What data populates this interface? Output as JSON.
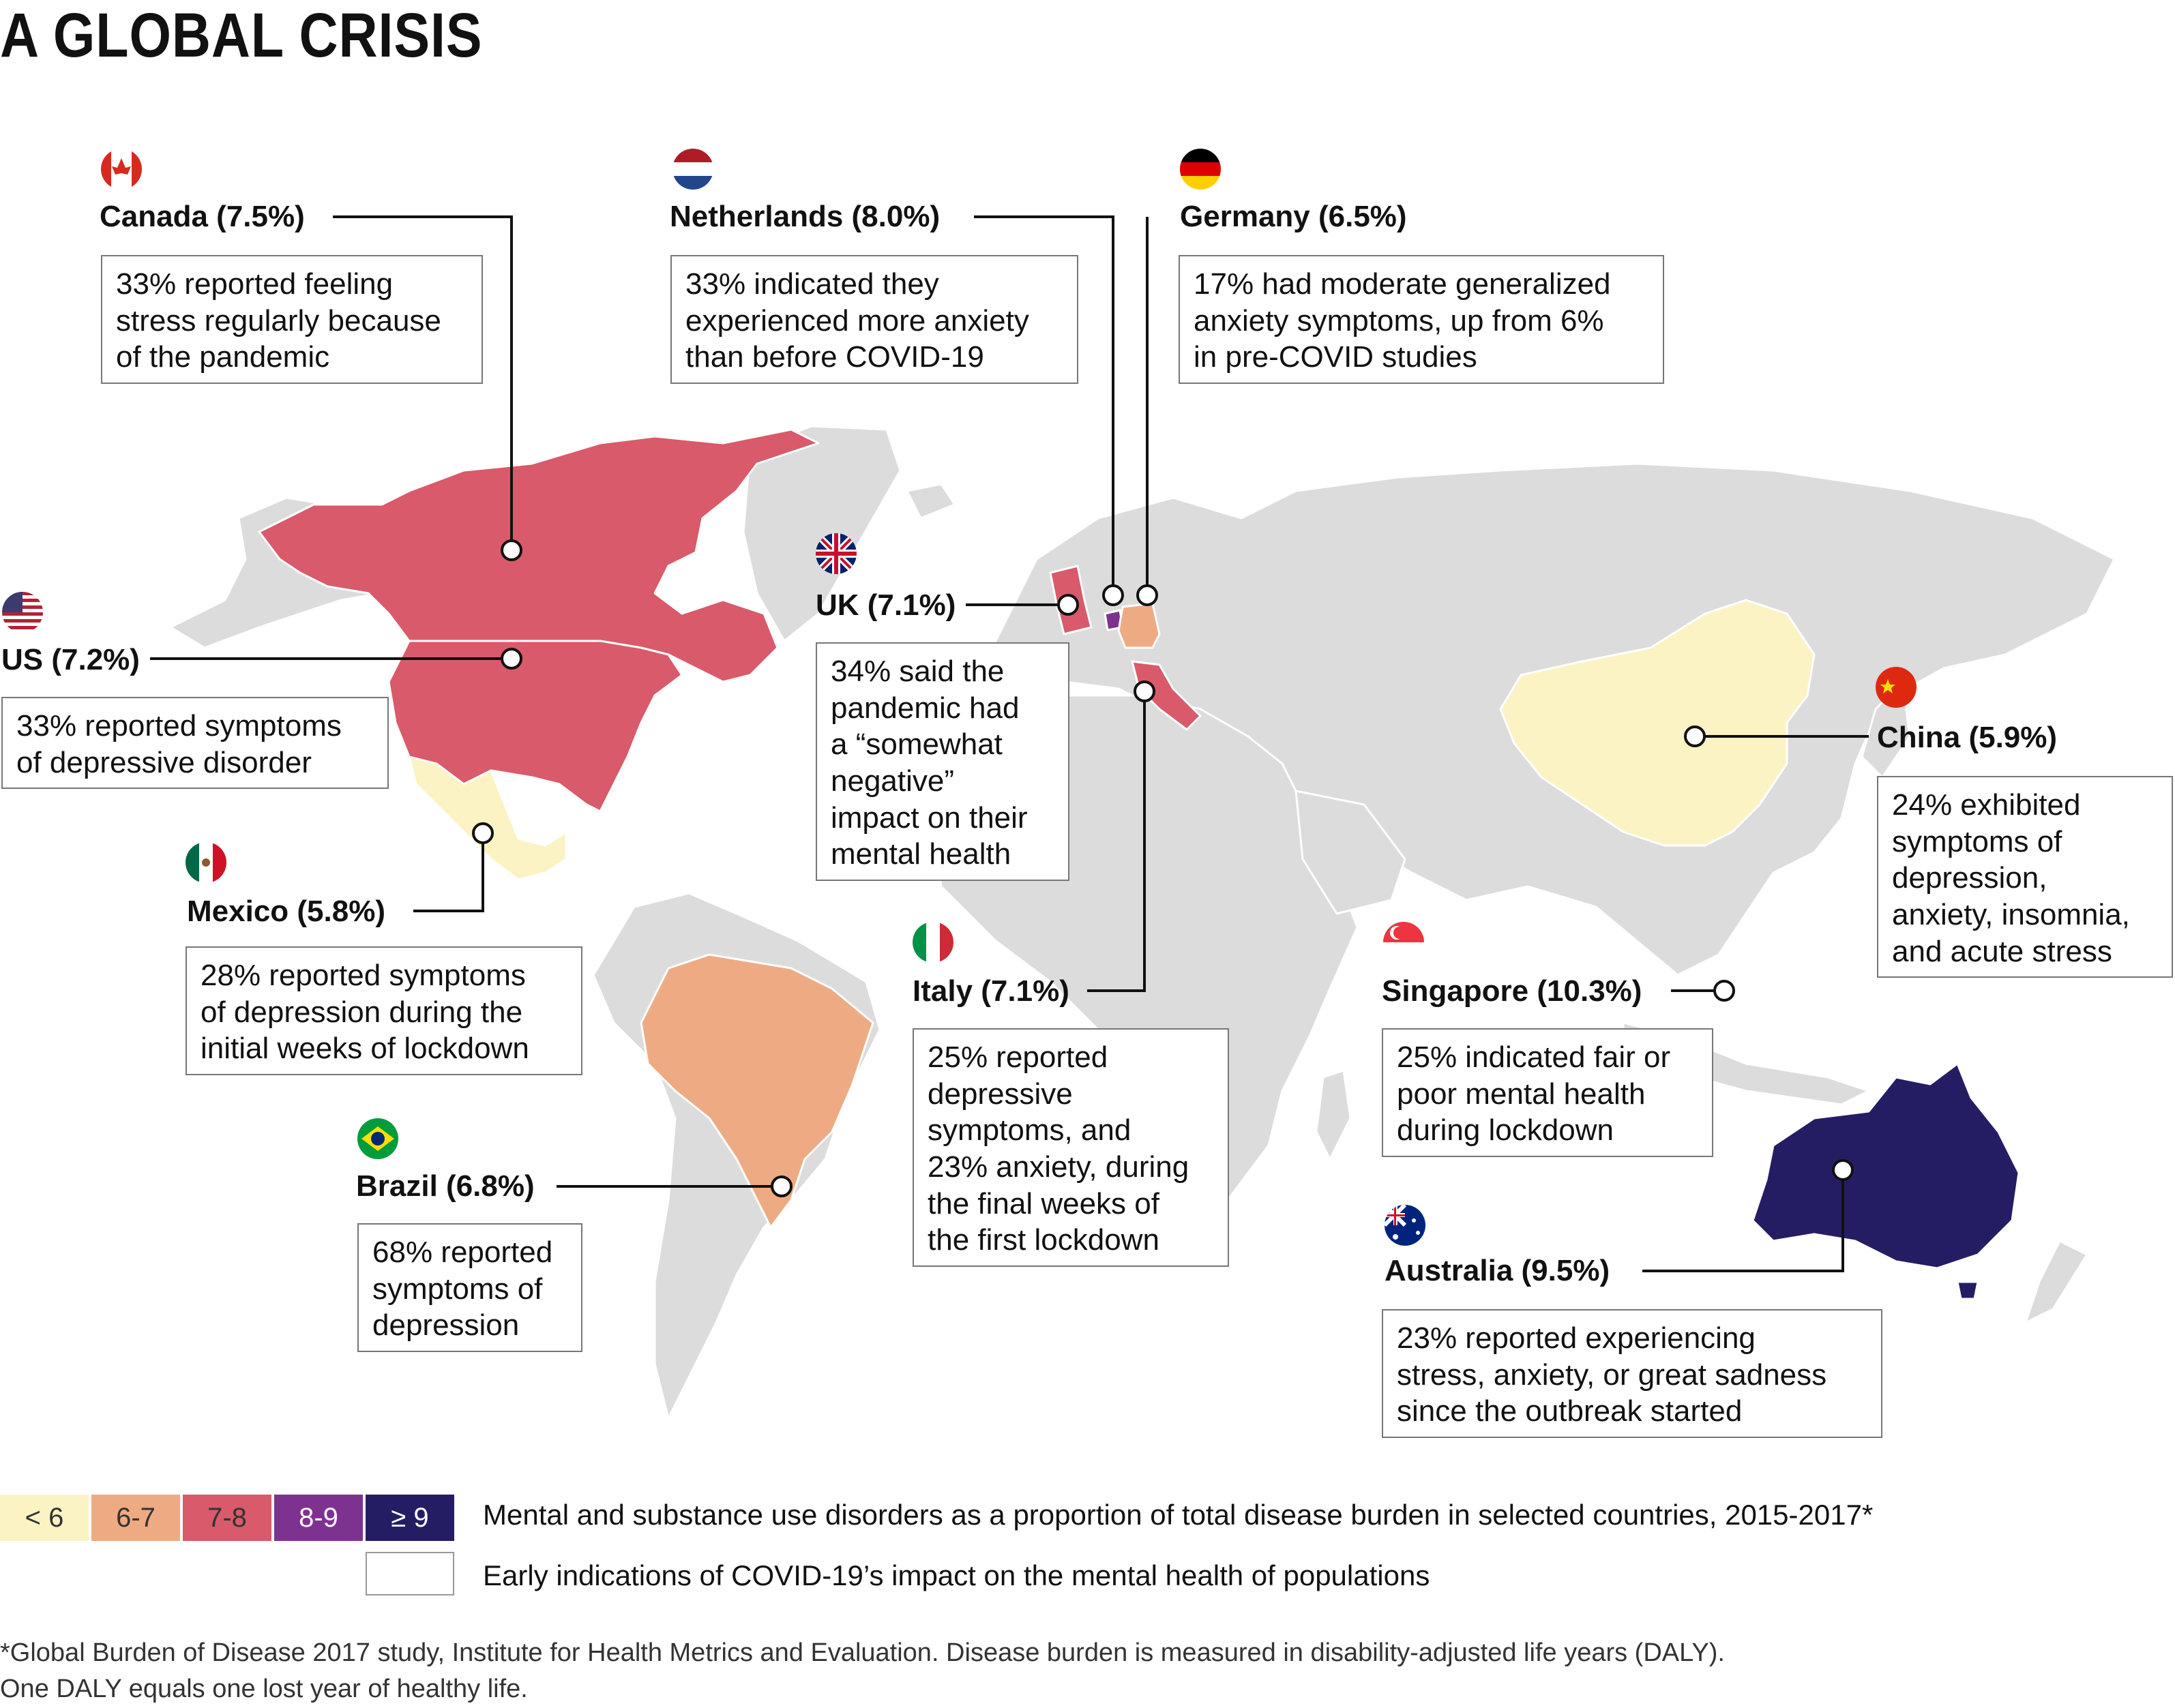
{
  "title": "A GLOBAL CRISIS",
  "colors": {
    "lt6": "#fbf3c4",
    "6to7": "#eeab83",
    "7to8": "#d95a6a",
    "8to9": "#7e3290",
    "ge9": "#251d64",
    "land": "#dcdcdc",
    "border": "#ffffff"
  },
  "countries": [
    {
      "id": "canada",
      "flag": "canada-flag-icon",
      "name": "Canada (7.5%)",
      "value": 7.5,
      "lines": [
        "33% reported feeling",
        "stress regularly because",
        "of the pandemic"
      ]
    },
    {
      "id": "netherlands",
      "flag": "netherlands-flag-icon",
      "name": "Netherlands (8.0%)",
      "value": 8.0,
      "lines": [
        "33% indicated they",
        "experienced more anxiety",
        "than before COVID-19"
      ]
    },
    {
      "id": "germany",
      "flag": "germany-flag-icon",
      "name": "Germany (6.5%)",
      "value": 6.5,
      "lines": [
        "17% had moderate generalized",
        "anxiety symptoms, up from 6%",
        "in pre-COVID studies"
      ]
    },
    {
      "id": "us",
      "flag": "us-flag-icon",
      "name": "US (7.2%)",
      "value": 7.2,
      "lines": [
        "33% reported symptoms",
        "of depressive disorder"
      ]
    },
    {
      "id": "uk",
      "flag": "uk-flag-icon",
      "name": "UK (7.1%)",
      "value": 7.1,
      "lines": [
        "34% said the",
        "pandemic had",
        "a “somewhat",
        "negative”",
        "impact on their",
        "mental health"
      ]
    },
    {
      "id": "china",
      "flag": "china-flag-icon",
      "name": "China (5.9%)",
      "value": 5.9,
      "lines": [
        "24% exhibited",
        "symptoms of",
        "depression,",
        "anxiety, insomnia,",
        "and acute stress"
      ]
    },
    {
      "id": "mexico",
      "flag": "mexico-flag-icon",
      "name": "Mexico (5.8%)",
      "value": 5.8,
      "lines": [
        "28% reported symptoms",
        "of depression during the",
        "initial weeks of lockdown"
      ]
    },
    {
      "id": "italy",
      "flag": "italy-flag-icon",
      "name": "Italy (7.1%)",
      "value": 7.1,
      "lines": [
        "25% reported",
        "depressive",
        "symptoms, and",
        "23% anxiety, during",
        "the final weeks of",
        "the first lockdown"
      ]
    },
    {
      "id": "singapore",
      "flag": "singapore-flag-icon",
      "name": "Singapore (10.3%)",
      "value": 10.3,
      "lines": [
        "25% indicated fair or",
        "poor mental health",
        "during lockdown"
      ]
    },
    {
      "id": "brazil",
      "flag": "brazil-flag-icon",
      "name": "Brazil (6.8%)",
      "value": 6.8,
      "lines": [
        "68% reported",
        "symptoms of",
        "depression"
      ]
    },
    {
      "id": "australia",
      "flag": "australia-flag-icon",
      "name": "Australia (9.5%)",
      "value": 9.5,
      "lines": [
        "23% reported experiencing",
        "stress, anxiety, or great sadness",
        "since the outbreak started"
      ]
    }
  ],
  "legend": {
    "bins": [
      "< 6",
      "6-7",
      "7-8",
      "8-9",
      "≥ 9"
    ],
    "burden_label": "Mental and substance use disorders as a proportion of total disease burden in selected countries, 2015-2017*",
    "covid_label": "Early indications of COVID-19’s impact on the mental health of populations"
  },
  "footnote": {
    "line1": "*Global Burden of Disease 2017 study, Institute for Health Metrics and Evaluation. Disease burden is measured in disability-adjusted life years (DALY).",
    "line2": "One DALY equals one lost year of healthy life."
  }
}
